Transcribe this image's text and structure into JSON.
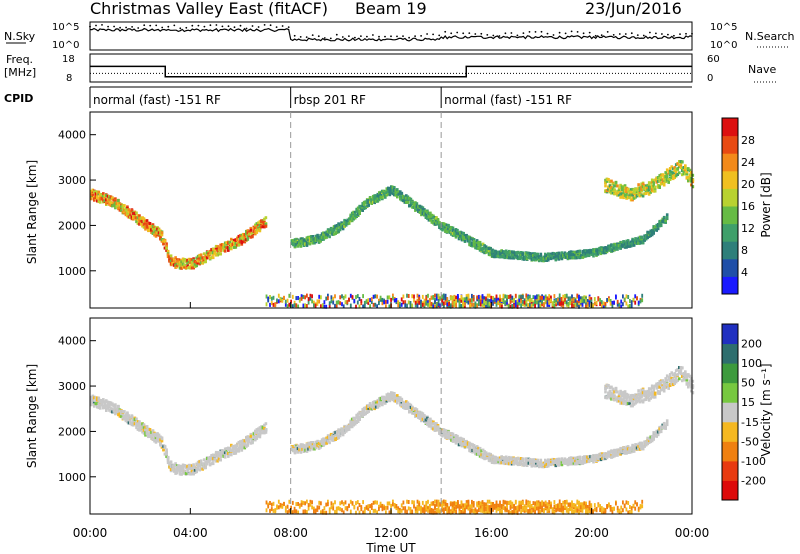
{
  "header": {
    "title": "Christmas Valley East (fitACF)",
    "beam": "Beam 19",
    "date": "23/Jun/2016"
  },
  "strip_labels": {
    "nsky": "N.Sky",
    "nsearch": "N.Search",
    "freq_line1": "Freq.",
    "freq_line2": "[MHz]",
    "nave": "Nave",
    "cpid": "CPID",
    "noise_ticks_left": [
      "10^5",
      "10^0"
    ],
    "noise_ticks_right": [
      "10^5",
      "10^0"
    ],
    "freq_ticks": [
      "18",
      "8"
    ],
    "nave_ticks": [
      "60",
      "0"
    ]
  },
  "cpid_segments": [
    {
      "label": "normal (fast) -151 RF",
      "start": 0,
      "end": 8
    },
    {
      "label": "rbsp 201 RF",
      "start": 8,
      "end": 14
    },
    {
      "label": "normal (fast) -151 RF",
      "start": 14,
      "end": 24
    }
  ],
  "x_axis": {
    "label": "Time UT",
    "ticks": [
      "00:00",
      "04:00",
      "08:00",
      "12:00",
      "16:00",
      "20:00",
      "00:00"
    ],
    "range_hours": [
      0,
      24
    ]
  },
  "panels": {
    "power": {
      "ylabel": "Slant Range [km]",
      "yticks": [
        "4000",
        "3000",
        "2000",
        "1000"
      ],
      "colorbar_label": "Power [dB]",
      "colorbar_ticks": [
        "28",
        "24",
        "20",
        "16",
        "12",
        "8",
        "4"
      ],
      "colors": [
        "#1a1aff",
        "#1f4fa8",
        "#2e7f7a",
        "#3f9f6a",
        "#66bb44",
        "#b8d230",
        "#f0c020",
        "#f38a1a",
        "#e84a12",
        "#dd1010"
      ]
    },
    "velocity": {
      "ylabel": "Slant Range [km]",
      "yticks": [
        "4000",
        "3000",
        "2000",
        "1000"
      ],
      "colorbar_label": "Velocity [m s⁻¹]",
      "colorbar_ticks": [
        "200",
        "100",
        "50",
        "15",
        "-15",
        "-50",
        "-100",
        "-200"
      ],
      "colors": [
        "#2030c0",
        "#2e6e6e",
        "#3d9a3d",
        "#77c840",
        "#c8c8c8",
        "#f5b820",
        "#f08010",
        "#e83a10",
        "#dd0a0a"
      ]
    }
  },
  "chart_data": {
    "type": "heatmap",
    "title": "Christmas Valley East (fitACF)",
    "xlabel": "Time UT",
    "ylabel": "Slant Range [km]",
    "xlim_hours": [
      0,
      24
    ],
    "ylim_km": [
      180,
      4500
    ],
    "dashed_time_markers_hours": [
      8,
      14
    ],
    "frequency_steps": [
      {
        "start": 0,
        "end": 3,
        "value": 14
      },
      {
        "start": 3,
        "end": 15,
        "value": 10
      },
      {
        "start": 15,
        "end": 24,
        "value": 14
      }
    ],
    "nave_level": 20,
    "backscatter_tracks": [
      {
        "name": "early_band",
        "points": [
          [
            0,
            2700
          ],
          [
            1,
            2500
          ],
          [
            2,
            2100
          ],
          [
            2.8,
            1800
          ],
          [
            3.2,
            1200
          ],
          [
            4,
            1150
          ],
          [
            5,
            1450
          ],
          [
            6,
            1700
          ],
          [
            7,
            2100
          ]
        ],
        "width_km": 220,
        "power_peak": 26,
        "velocity": 0
      },
      {
        "name": "mid_band",
        "points": [
          [
            8,
            1600
          ],
          [
            9,
            1700
          ],
          [
            10,
            2000
          ],
          [
            11,
            2500
          ],
          [
            12,
            2800
          ],
          [
            13,
            2400
          ],
          [
            14,
            2000
          ],
          [
            15,
            1700
          ],
          [
            16,
            1400
          ]
        ],
        "width_km": 180,
        "power_peak": 14,
        "velocity": -5
      },
      {
        "name": "late_band",
        "points": [
          [
            16,
            1400
          ],
          [
            18,
            1300
          ],
          [
            20,
            1400
          ],
          [
            22,
            1700
          ],
          [
            23,
            2200
          ]
        ],
        "width_km": 150,
        "power_peak": 12,
        "velocity": 0
      },
      {
        "name": "evening_upper",
        "points": [
          [
            20.5,
            2900
          ],
          [
            21.5,
            2700
          ],
          [
            22.5,
            2900
          ],
          [
            23.5,
            3300
          ],
          [
            24,
            3000
          ]
        ],
        "width_km": 300,
        "power_peak": 20,
        "velocity": -2
      }
    ]
  }
}
